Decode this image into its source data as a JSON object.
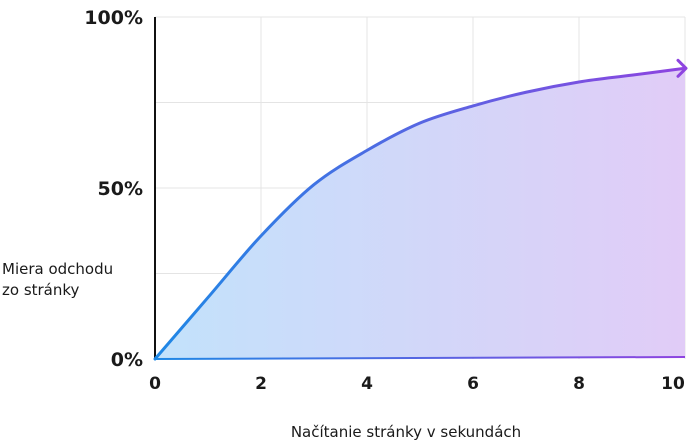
{
  "chart_data": {
    "type": "area",
    "x": [
      0,
      1,
      2,
      3,
      4,
      5,
      6,
      7,
      8,
      9,
      10
    ],
    "series": [
      {
        "values": [
          0,
          18,
          36,
          51,
          61,
          69,
          74,
          78,
          81,
          83,
          85
        ]
      }
    ],
    "xlabel": "Načítanie stránky v sekundách",
    "ylabel": [
      "Miera odchodu",
      "zo stránky"
    ],
    "xlim": [
      0,
      10
    ],
    "ylim": [
      0,
      100
    ],
    "xticks": [
      "0",
      "2",
      "4",
      "6",
      "8",
      "10"
    ],
    "yticks": [
      "0%",
      "50%",
      "100%"
    ],
    "grid": true,
    "colors": {
      "line_start": "#1e88e5",
      "line_end": "#8e44e0",
      "fill_start": "#c2e2fb",
      "fill_end": "#e1ccf7",
      "grid": "#e4e4e4",
      "axis": "#111111"
    }
  }
}
